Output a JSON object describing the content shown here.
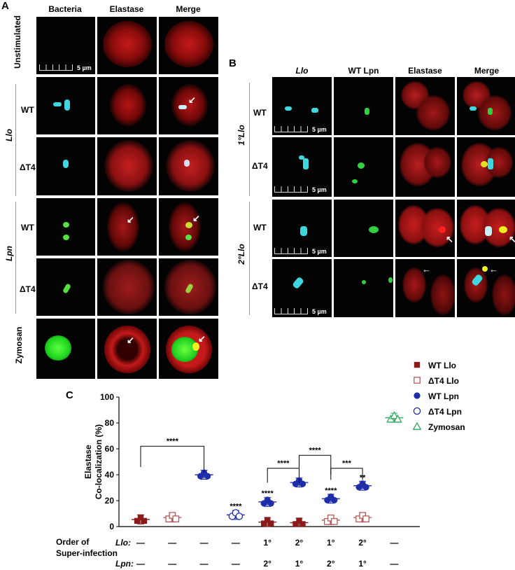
{
  "panelA": {
    "letter": "A",
    "columns": [
      "Bacteria",
      "Elastase",
      "Merge"
    ],
    "rows": [
      "Unstimulated",
      "WT",
      "ΔT4",
      "WT",
      "ΔT4",
      "Zymosan"
    ],
    "group_labels": {
      "llo": "Llo",
      "lpn": "Lpn"
    },
    "scale_bar": "5 µm"
  },
  "panelB": {
    "letter": "B",
    "columns": [
      "Llo",
      "WT Lpn",
      "Elastase",
      "Merge"
    ],
    "rows": [
      "WT",
      "ΔT4",
      "WT",
      "ΔT4"
    ],
    "group_labels": {
      "primary": "1°Llo",
      "secondary": "2°Llo"
    },
    "scale_bar": "5 µm"
  },
  "panelC": {
    "letter": "C",
    "order_label_1": "Order of",
    "order_label_2": "Super-infection",
    "row_llo": "Llo",
    "row_lpn": "Lpn",
    "llo_order": [
      "—",
      "—",
      "—",
      "—",
      "1°",
      "2°",
      "1°",
      "2°",
      "—"
    ],
    "lpn_order": [
      "—",
      "—",
      "—",
      "—",
      "2°",
      "1°",
      "2°",
      "1°",
      "—"
    ]
  },
  "colors": {
    "wt_llo": "#8b1a1a",
    "t4_llo": "#b85a5a",
    "wt_lpn": "#1f2ea8",
    "t4_lpn": "#1f2ea8",
    "zymosan": "#2eaa5e"
  },
  "chart_data": {
    "type": "scatter",
    "ylabel_1": "Elastase",
    "ylabel_2": "Co-localization (%)",
    "ylim": [
      0,
      100
    ],
    "yticks": [
      0,
      20,
      40,
      60,
      80,
      100
    ],
    "legend_position": "top-right",
    "series": [
      {
        "name": "WT Llo",
        "marker": "filled-square",
        "points": [
          {
            "x": 1,
            "y": 5.5
          },
          {
            "x": 5,
            "y": 3.5
          },
          {
            "x": 6,
            "y": 3
          }
        ]
      },
      {
        "name": "ΔT4 Llo",
        "marker": "open-square",
        "points": [
          {
            "x": 2,
            "y": 7
          },
          {
            "x": 7,
            "y": 5
          },
          {
            "x": 8,
            "y": 7
          }
        ]
      },
      {
        "name": "WT Lpn",
        "marker": "filled-circle",
        "points": [
          {
            "x": 3,
            "y": 40
          },
          {
            "x": 5,
            "y": 19
          },
          {
            "x": 6,
            "y": 34
          },
          {
            "x": 7,
            "y": 21.5
          },
          {
            "x": 8,
            "y": 31.5
          }
        ]
      },
      {
        "name": "ΔT4 Lpn",
        "marker": "open-circle",
        "points": [
          {
            "x": 4,
            "y": 9
          }
        ]
      },
      {
        "name": "Zymosan",
        "marker": "open-triangle",
        "points": [
          {
            "x": 9,
            "y": 84
          }
        ]
      }
    ],
    "significance": [
      {
        "x": 4,
        "y": 16,
        "label": "****"
      },
      {
        "x": 5,
        "y": 26,
        "label": "****"
      },
      {
        "x": 7,
        "y": 28,
        "label": "****"
      },
      {
        "x": 8,
        "y": 38,
        "label": "**"
      }
    ],
    "brackets": [
      {
        "x1": 1,
        "x2": 3,
        "label": "****"
      },
      {
        "x1": 5,
        "x2": 6,
        "label": "****"
      },
      {
        "x1": 6,
        "x2": 7,
        "label": "****"
      },
      {
        "x1": 7,
        "x2": 8,
        "label": "***"
      }
    ]
  }
}
